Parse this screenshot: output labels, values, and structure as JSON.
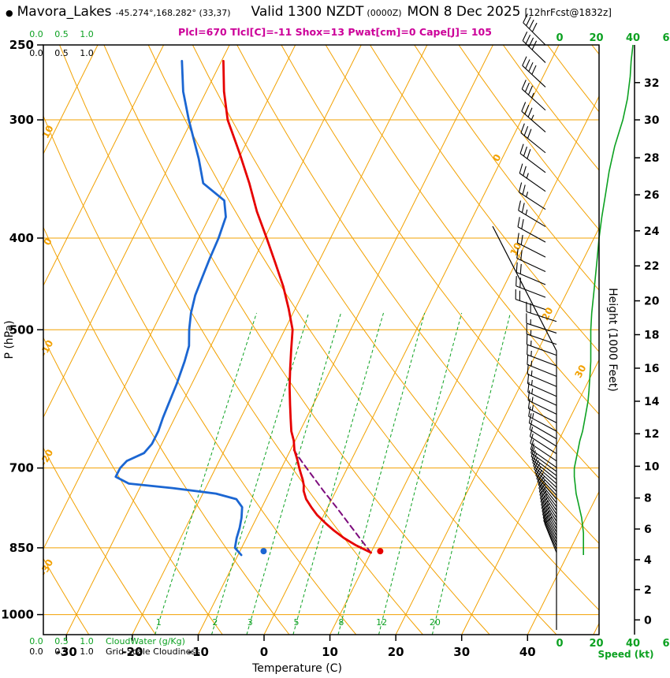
{
  "header": {
    "bullet": "●",
    "station": "Mavora_Lakes",
    "coords": "-45.274°,168.282° (33,37)",
    "valid_label": "Valid 1300 NZDT",
    "valid_utc": "(0000Z)",
    "valid_date": "MON 8 Dec 2025",
    "forecast_note": "[12hrFcst@1832z]",
    "params": "Plcl=670 Tlc l[C]=-11 Shox=13 Pwat[cm]=0 Cape[J]= 105"
  },
  "chart_data": {
    "type": "skewt-log-p-sounding",
    "pressure_axis": {
      "label": "P (hPa)",
      "ticks": [
        250,
        300,
        400,
        500,
        700,
        850,
        1000
      ],
      "range": [
        250,
        1050
      ]
    },
    "temperature_axis": {
      "label": "Temperature (C)",
      "ticks": [
        -30,
        -20,
        -10,
        0,
        10,
        20,
        30,
        40
      ],
      "unit": "C"
    },
    "height_axis": {
      "label": "Height (1000 Feet)",
      "ticks_kft_pressure": [
        [
          0,
          1013
        ],
        [
          2,
          941
        ],
        [
          4,
          875
        ],
        [
          6,
          812
        ],
        [
          8,
          753
        ],
        [
          10,
          697
        ],
        [
          12,
          644
        ],
        [
          14,
          595
        ],
        [
          16,
          549
        ],
        [
          18,
          506
        ],
        [
          20,
          466
        ],
        [
          22,
          428
        ],
        [
          24,
          393
        ],
        [
          26,
          360
        ],
        [
          28,
          329
        ],
        [
          30,
          300
        ],
        [
          32,
          274
        ]
      ]
    },
    "speed_axis": {
      "label": "Speed (kt)",
      "ticks": [
        0,
        20,
        40,
        60
      ]
    },
    "cloud_scales": {
      "green_label": "CloudWater (g/Kg)",
      "black_label": "Grid-Scale Cloudiness",
      "ticks": [
        "0.0",
        "0.5",
        "1.0"
      ]
    },
    "mixing_ratio_lines": [
      1,
      2,
      3,
      5,
      8,
      12,
      20
    ],
    "adiabat_labels": [
      10,
      0,
      -10,
      -20,
      -30
    ],
    "isotherm_labels": [
      0,
      10,
      20,
      30
    ],
    "temperature_curve": [
      [
        860,
        10
      ],
      [
        845,
        7.2
      ],
      [
        830,
        4.8
      ],
      [
        815,
        2.7
      ],
      [
        800,
        0.8
      ],
      [
        785,
        -1
      ],
      [
        770,
        -2.5
      ],
      [
        755,
        -3.9
      ],
      [
        740,
        -4.9
      ],
      [
        730,
        -5.3
      ],
      [
        720,
        -5.9
      ],
      [
        710,
        -6.6
      ],
      [
        700,
        -7.3
      ],
      [
        685,
        -8.3
      ],
      [
        670,
        -9.4
      ],
      [
        655,
        -10.2
      ],
      [
        640,
        -11.3
      ],
      [
        620,
        -12.4
      ],
      [
        600,
        -13.5
      ],
      [
        575,
        -14.9
      ],
      [
        550,
        -16.2
      ],
      [
        525,
        -17.5
      ],
      [
        500,
        -18.8
      ],
      [
        475,
        -21
      ],
      [
        450,
        -23.5
      ],
      [
        425,
        -26.5
      ],
      [
        400,
        -29.7
      ],
      [
        375,
        -33.2
      ],
      [
        350,
        -36.5
      ],
      [
        325,
        -40.3
      ],
      [
        300,
        -44.6
      ],
      [
        280,
        -47.3
      ],
      [
        260,
        -49.7
      ]
    ],
    "dewpoint_curve": [
      [
        865,
        -9.5
      ],
      [
        850,
        -11
      ],
      [
        830,
        -11.5
      ],
      [
        810,
        -11.8
      ],
      [
        790,
        -12.3
      ],
      [
        770,
        -13
      ],
      [
        755,
        -14.5
      ],
      [
        745,
        -18
      ],
      [
        735,
        -25
      ],
      [
        727,
        -32
      ],
      [
        715,
        -34.5
      ],
      [
        700,
        -34.5
      ],
      [
        688,
        -34
      ],
      [
        675,
        -32
      ],
      [
        660,
        -31.5
      ],
      [
        640,
        -31.5
      ],
      [
        620,
        -31.8
      ],
      [
        600,
        -32
      ],
      [
        570,
        -32.3
      ],
      [
        540,
        -32.8
      ],
      [
        520,
        -33.3
      ],
      [
        500,
        -34.5
      ],
      [
        480,
        -35.5
      ],
      [
        460,
        -36.2
      ],
      [
        440,
        -36.5
      ],
      [
        420,
        -36.8
      ],
      [
        400,
        -37
      ],
      [
        380,
        -37.5
      ],
      [
        365,
        -39
      ],
      [
        350,
        -43.5
      ],
      [
        330,
        -46
      ],
      [
        300,
        -50.5
      ],
      [
        280,
        -53.5
      ],
      [
        260,
        -56
      ]
    ],
    "parcel_curve": [
      [
        860,
        10
      ],
      [
        830,
        7.2
      ],
      [
        800,
        4.3
      ],
      [
        770,
        1.3
      ],
      [
        740,
        -1.9
      ],
      [
        710,
        -5.1
      ],
      [
        690,
        -7.3
      ],
      [
        670,
        -9.5
      ]
    ],
    "surface_markers": {
      "temperature": {
        "p": 857,
        "t": 11.3
      },
      "dewpoint": {
        "p": 857,
        "t": -6.4
      }
    },
    "wind_barbs": [
      [
        860,
        8,
        338
      ],
      [
        853,
        8,
        336
      ],
      [
        846,
        9,
        335
      ],
      [
        839,
        10,
        334
      ],
      [
        832,
        10,
        333
      ],
      [
        825,
        11,
        332
      ],
      [
        818,
        11,
        331
      ],
      [
        811,
        12,
        330
      ],
      [
        804,
        12,
        329
      ],
      [
        797,
        12,
        328
      ],
      [
        790,
        12,
        327
      ],
      [
        783,
        11,
        326
      ],
      [
        776,
        11,
        325
      ],
      [
        769,
        10,
        323
      ],
      [
        762,
        10,
        321
      ],
      [
        755,
        10,
        319
      ],
      [
        748,
        9,
        317
      ],
      [
        741,
        9,
        315
      ],
      [
        734,
        9,
        313
      ],
      [
        727,
        8,
        311
      ],
      [
        720,
        8,
        309
      ],
      [
        713,
        8,
        307
      ],
      [
        706,
        8,
        306
      ],
      [
        699,
        8,
        305
      ],
      [
        688,
        9,
        304
      ],
      [
        676,
        9,
        303
      ],
      [
        664,
        10,
        302
      ],
      [
        652,
        11,
        300
      ],
      [
        640,
        13,
        298
      ],
      [
        627,
        14,
        297
      ],
      [
        614,
        15,
        296
      ],
      [
        601,
        16,
        295
      ],
      [
        588,
        16,
        294
      ],
      [
        574,
        17,
        293
      ],
      [
        560,
        17,
        292
      ],
      [
        546,
        17,
        291
      ],
      [
        532,
        17,
        290
      ],
      [
        518,
        17,
        289
      ],
      [
        504,
        17,
        288
      ],
      [
        490,
        18,
        288
      ],
      [
        476,
        18,
        289
      ],
      [
        462,
        19,
        291
      ],
      [
        448,
        19,
        293
      ],
      [
        434,
        20,
        295
      ],
      [
        419,
        21,
        297
      ],
      [
        404,
        22,
        299
      ],
      [
        389,
        23,
        301
      ],
      [
        373,
        25,
        303
      ],
      [
        357,
        27,
        305
      ],
      [
        341,
        29,
        307
      ],
      [
        325,
        31,
        309
      ],
      [
        309,
        34,
        311
      ],
      [
        293,
        36,
        312
      ],
      [
        277,
        39,
        313
      ],
      [
        261,
        41,
        314
      ],
      [
        250,
        42,
        315
      ]
    ],
    "wind_speed_profile": [
      [
        865,
        13
      ],
      [
        850,
        13
      ],
      [
        835,
        13
      ],
      [
        820,
        13
      ],
      [
        805,
        12.5
      ],
      [
        790,
        12
      ],
      [
        775,
        11
      ],
      [
        760,
        10
      ],
      [
        745,
        9
      ],
      [
        730,
        8.5
      ],
      [
        715,
        8
      ],
      [
        700,
        8
      ],
      [
        685,
        9
      ],
      [
        670,
        10
      ],
      [
        655,
        11
      ],
      [
        640,
        12.5
      ],
      [
        625,
        13.5
      ],
      [
        610,
        14.5
      ],
      [
        595,
        15.5
      ],
      [
        580,
        16
      ],
      [
        560,
        16.5
      ],
      [
        540,
        17
      ],
      [
        520,
        17
      ],
      [
        500,
        17
      ],
      [
        480,
        17.5
      ],
      [
        460,
        18.5
      ],
      [
        440,
        19.5
      ],
      [
        420,
        20.5
      ],
      [
        400,
        21.5
      ],
      [
        380,
        23
      ],
      [
        360,
        25
      ],
      [
        340,
        27
      ],
      [
        320,
        30
      ],
      [
        300,
        34.5
      ],
      [
        285,
        37
      ],
      [
        270,
        38.5
      ],
      [
        260,
        39
      ],
      [
        250,
        40
      ]
    ],
    "colors": {
      "orange": "#F2A101",
      "green": "#0CA121",
      "red": "#E60000",
      "blue": "#1B66D2",
      "purple": "#7D0C7D",
      "magenta": "#CC0099",
      "black": "#000000"
    }
  }
}
